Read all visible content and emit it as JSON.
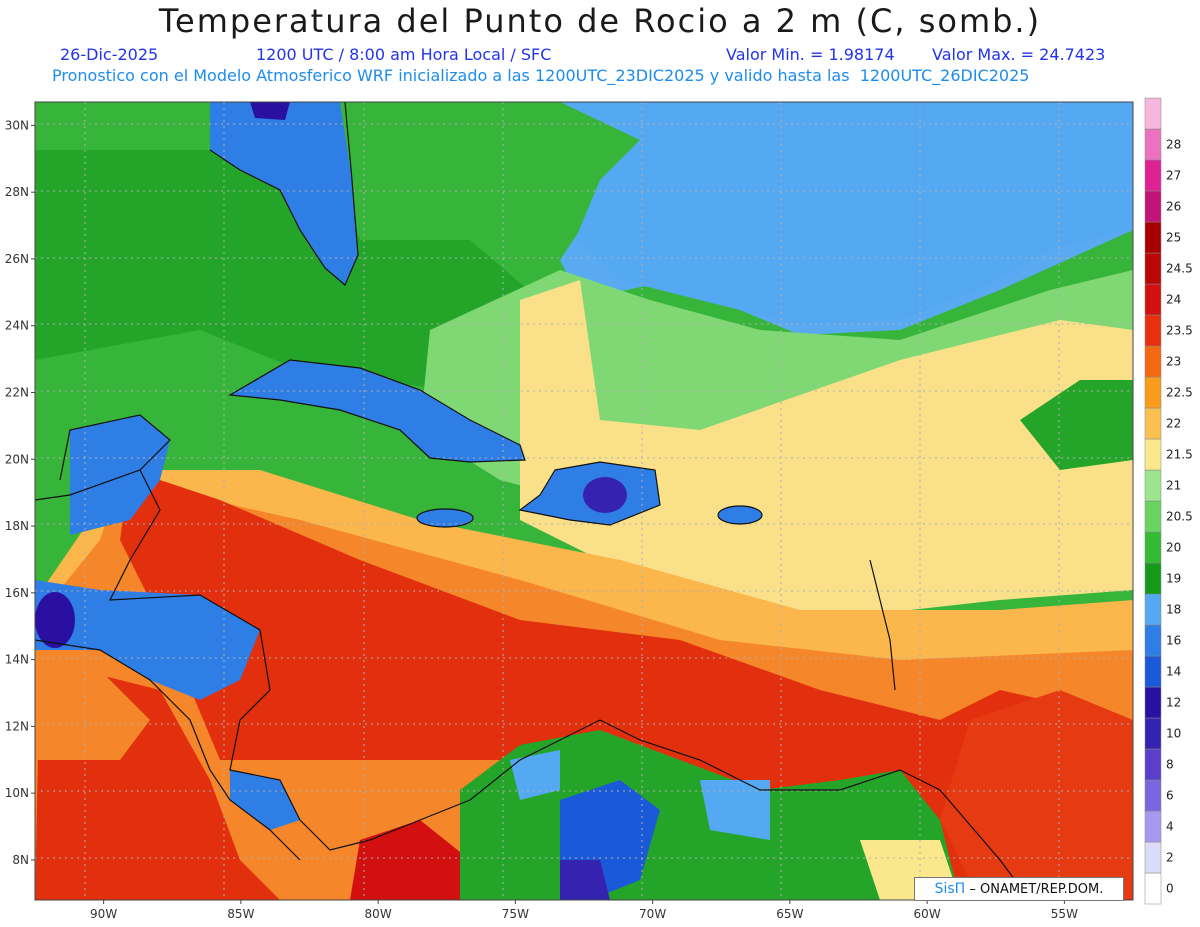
{
  "header": {
    "title": "Temperatura del Punto de Rocio a 2 m (C, somb.)",
    "date": "26-Dic-2025",
    "time": "1200 UTC / 8:00 am Hora Local / SFC",
    "vmin": "Valor Min. = 1.98174",
    "vmax": "Valor Max. = 24.7423",
    "subtitle": "Pronostico con el Modelo Atmosferico WRF inicializado a las 1200UTC_23DIC2025 y valido hasta las  1200UTC_26DIC2025"
  },
  "map": {
    "lon_range": [
      -92.5,
      -52.5
    ],
    "lat_range": [
      6.8,
      30.7
    ],
    "lon_ticks": [
      {
        "value": -90,
        "label": "90W"
      },
      {
        "value": -85,
        "label": "85W"
      },
      {
        "value": -80,
        "label": "80W"
      },
      {
        "value": -75,
        "label": "75W"
      },
      {
        "value": -70,
        "label": "70W"
      },
      {
        "value": -65,
        "label": "65W"
      },
      {
        "value": -60,
        "label": "60W"
      },
      {
        "value": -55,
        "label": "55W"
      }
    ],
    "lat_ticks": [
      {
        "value": 8,
        "label": "8N"
      },
      {
        "value": 10,
        "label": "10N"
      },
      {
        "value": 12,
        "label": "12N"
      },
      {
        "value": 14,
        "label": "14N"
      },
      {
        "value": 16,
        "label": "16N"
      },
      {
        "value": 18,
        "label": "18N"
      },
      {
        "value": 20,
        "label": "20N"
      },
      {
        "value": 22,
        "label": "22N"
      },
      {
        "value": 24,
        "label": "24N"
      },
      {
        "value": 26,
        "label": "26N"
      },
      {
        "value": 28,
        "label": "28N"
      },
      {
        "value": 30,
        "label": "30N"
      }
    ]
  },
  "colorbar": {
    "levels": [
      {
        "label": "0",
        "color": "#ffffff"
      },
      {
        "label": "2",
        "color": "#dcdcf8"
      },
      {
        "label": "4",
        "color": "#a898f0"
      },
      {
        "label": "6",
        "color": "#7a66e0"
      },
      {
        "label": "8",
        "color": "#5a40c8"
      },
      {
        "label": "10",
        "color": "#3622b0"
      },
      {
        "label": "12",
        "color": "#2a10a0"
      },
      {
        "label": "14",
        "color": "#1a5ad8"
      },
      {
        "label": "16",
        "color": "#2f7ee6"
      },
      {
        "label": "18",
        "color": "#55a8f2"
      },
      {
        "label": "19",
        "color": "#129a18"
      },
      {
        "label": "20",
        "color": "#34bb34"
      },
      {
        "label": "20.5",
        "color": "#6ad463"
      },
      {
        "label": "21",
        "color": "#9ce48e"
      },
      {
        "label": "21.5",
        "color": "#fbe88c"
      },
      {
        "label": "22",
        "color": "#fbc052"
      },
      {
        "label": "22.5",
        "color": "#f99b1c"
      },
      {
        "label": "23",
        "color": "#f46a12"
      },
      {
        "label": "23.5",
        "color": "#e63010"
      },
      {
        "label": "24",
        "color": "#d21010"
      },
      {
        "label": "24.5",
        "color": "#bb0606"
      },
      {
        "label": "25",
        "color": "#a80000"
      },
      {
        "label": "26",
        "color": "#c21478"
      },
      {
        "label": "27",
        "color": "#de2294"
      },
      {
        "label": "28",
        "color": "#ec72c0"
      },
      {
        "label": "",
        "color": "#f6b6de"
      }
    ]
  },
  "credit": {
    "logo": "SisΠ",
    "text": " – ONAMET/REP.DOM."
  }
}
